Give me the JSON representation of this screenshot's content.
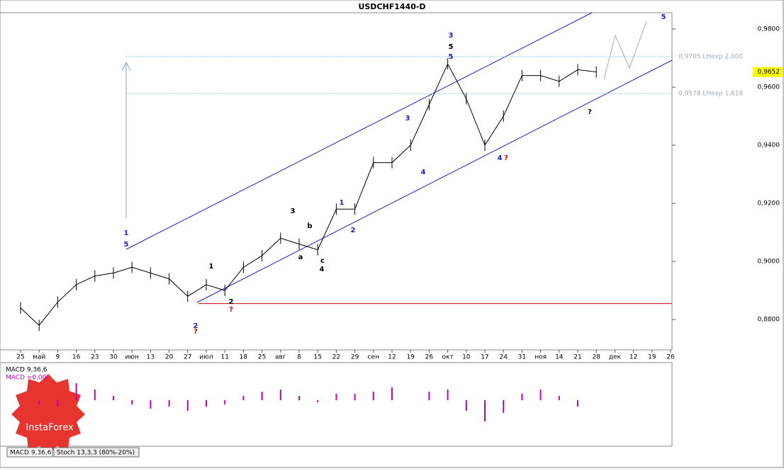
{
  "chart_data": {
    "type": "line",
    "title": "USDCHF1440-D",
    "categories": [
      "25",
      "май",
      "9",
      "16",
      "23",
      "30",
      "июн",
      "13",
      "20",
      "27",
      "июл",
      "11",
      "18",
      "25",
      "авг",
      "8",
      "15",
      "22",
      "29",
      "сен",
      "12",
      "19",
      "26",
      "окт",
      "10",
      "17",
      "24",
      "31",
      "ноя",
      "14",
      "21",
      "28",
      "дек",
      "12",
      "19",
      "26"
    ],
    "series": [
      {
        "color": "#000000",
        "values": [
          0.884,
          0.878,
          0.886,
          0.892,
          0.895,
          0.896,
          0.898,
          0.896,
          0.894,
          0.888,
          0.892,
          0.89,
          0.898,
          0.902,
          0.908,
          0.906,
          0.904,
          0.918,
          0.918,
          0.934,
          0.934,
          0.94,
          0.954,
          0.968,
          0.956,
          0.94,
          0.95,
          0.964,
          0.964,
          0.962,
          0.966,
          0.9652,
          null,
          null,
          null,
          null
        ]
      }
    ],
    "ylim": [
      0.8698,
      0.9856
    ],
    "yticks": [
      {
        "value": 0.98,
        "label": "0,9800"
      },
      {
        "value": 0.96,
        "label": "0,9600"
      },
      {
        "value": 0.94,
        "label": "0,9400"
      },
      {
        "value": 0.92,
        "label": "0,9200"
      },
      {
        "value": 0.9,
        "label": "0,9000"
      },
      {
        "value": 0.88,
        "label": "0,8800"
      }
    ],
    "current_price": {
      "value": 0.9652,
      "label": "0,9652"
    },
    "fib_levels": [
      {
        "value": 0.9705,
        "label": "0,9705 LHexp 2,000"
      },
      {
        "value": 0.9578,
        "label": "0,9578 LHexp 1,618"
      }
    ],
    "support_level": 0.8855,
    "annotations": [
      {
        "text": "3",
        "color": "#2020c0"
      },
      {
        "text": "5",
        "color": "#000000"
      },
      {
        "text": "5",
        "color": "#2020c0"
      },
      {
        "text": "1",
        "color": "#2020c0"
      },
      {
        "text": "5",
        "color": "#2020c0"
      },
      {
        "text": "2",
        "color": "#2020c0"
      },
      {
        "text": "?",
        "color": "#d00000"
      },
      {
        "text": "4",
        "color": "#2020c0"
      },
      {
        "text": "?",
        "color": "#d00000"
      },
      {
        "text": "3",
        "color": "#2020c0"
      },
      {
        "text": "4",
        "color": "#2020c0"
      },
      {
        "text": "?",
        "color": "#000000"
      },
      {
        "text": "5",
        "color": "#2020c0"
      },
      {
        "text": "3",
        "color": "#000000"
      },
      {
        "text": "4",
        "color": "#000000"
      },
      {
        "text": "b",
        "color": "#000000"
      },
      {
        "text": "a",
        "color": "#000000"
      },
      {
        "text": "c",
        "color": "#000000"
      },
      {
        "text": "2",
        "color": "#2020c0"
      },
      {
        "text": "1",
        "color": "#2020c0"
      },
      {
        "text": "2",
        "color": "#000000"
      },
      {
        "text": "?",
        "color": "#d00000"
      },
      {
        "text": "1",
        "color": "#000000"
      }
    ],
    "macd": {
      "label": "MACD 9,36,6",
      "value_label": "MACD =0,00",
      "color": "#c000c0",
      "ylim": [
        -1,
        1
      ],
      "values": [
        0,
        -0.2,
        -0.3,
        0.8,
        0.5,
        0.2,
        -0.2,
        -0.4,
        -0.3,
        -0.5,
        -0.3,
        -0.2,
        0.2,
        0.4,
        0.5,
        0.2,
        -0.1,
        0.3,
        0.3,
        0.4,
        0.6,
        0.0,
        0.4,
        0.5,
        -0.5,
        -1.0,
        -0.6,
        0.3,
        0.5,
        0.2,
        -0.3,
        0,
        null,
        null,
        null,
        null
      ]
    },
    "tabs": [
      "MACD 9,36,6",
      "Stoch 13,3,3 (80%-20%)"
    ],
    "logo": "InstaForex"
  }
}
